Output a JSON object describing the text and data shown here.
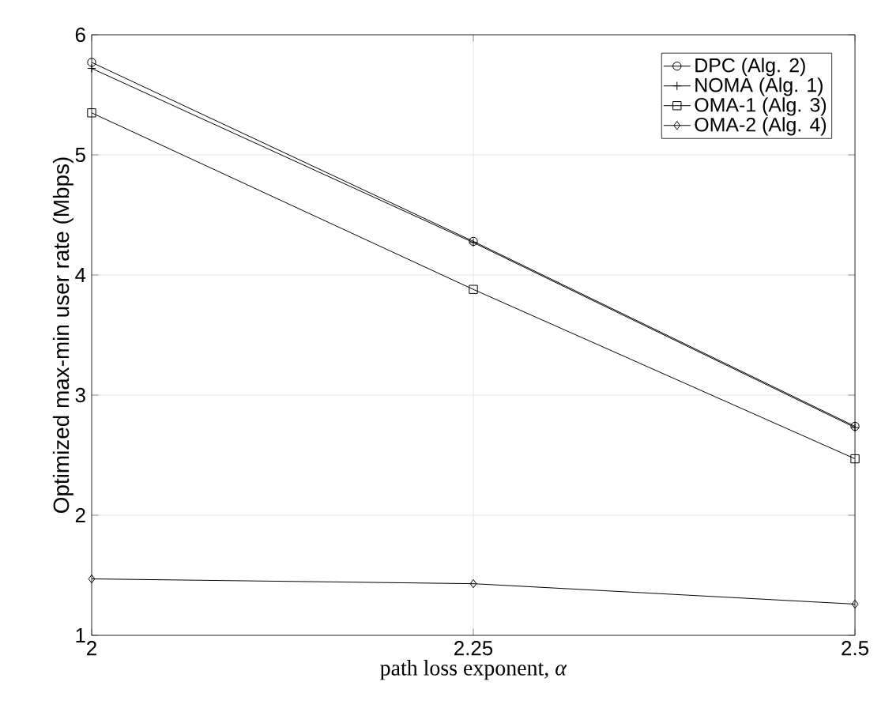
{
  "chart_data": {
    "type": "line",
    "xlabel": "path loss exponent, *α*",
    "ylabel": "Optimized max-min user rate (Mbps)",
    "x": [
      2,
      2.25,
      2.5
    ],
    "series": [
      {
        "name": "DPC (Alg. 2)",
        "color": "#000000",
        "marker": "circle",
        "values": [
          5.77,
          4.28,
          2.74
        ]
      },
      {
        "name": "NOMA (Alg. 1)",
        "color": "#000000",
        "marker": "cross",
        "values": [
          5.72,
          4.27,
          2.73
        ]
      },
      {
        "name": "OMA-1 (Alg. 3)",
        "color": "#000000",
        "marker": "square",
        "values": [
          5.35,
          3.88,
          2.47
        ]
      },
      {
        "name": "OMA-2 (Alg. 4)",
        "color": "#000000",
        "marker": "diamond",
        "values": [
          1.47,
          1.43,
          1.26
        ]
      }
    ],
    "xlim": [
      2,
      2.5
    ],
    "ylim": [
      1,
      6
    ],
    "xticks": [
      2,
      2.25,
      2.5
    ],
    "yticks": [
      1,
      2,
      3,
      4,
      5,
      6
    ],
    "grid": true,
    "legend": "top right",
    "line_style": "solid"
  }
}
